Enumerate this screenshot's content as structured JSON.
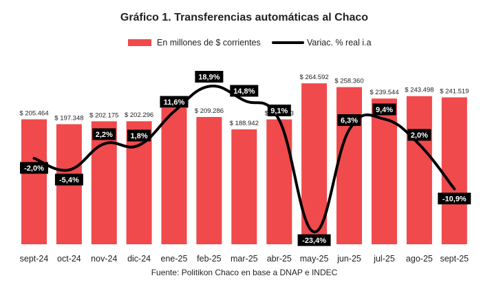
{
  "chart_data": {
    "type": "bar",
    "title": "Gráfico 1. Transferencias automáticas al Chaco",
    "categories": [
      "sept-24",
      "oct-24",
      "nov-24",
      "dic-24",
      "ene-25",
      "feb-25",
      "mar-25",
      "abr-25",
      "may-25",
      "jun-25",
      "jul-25",
      "ago-25",
      "sept-25"
    ],
    "series": [
      {
        "name": "En millones de $ corrientes",
        "kind": "bar",
        "color": "#f04a4c",
        "values": [
          205464,
          197348,
          202175,
          202296,
          224234,
          209286,
          188942,
          205313,
          264592,
          258360,
          239544,
          243498,
          241519
        ],
        "labels": [
          "$ 205.464",
          "$ 197.348",
          "$ 202.175",
          "$ 202.296",
          "$ 224.234",
          "$ 209.286",
          "$ 188.942",
          "$ 205.313",
          "$ 264.592",
          "$ 258.360",
          "$ 239.544",
          "$ 243.498",
          "$ 241.519"
        ]
      },
      {
        "name": "Variac. % real i.a",
        "kind": "line",
        "color": "#000000",
        "values": [
          -2.0,
          -5.4,
          2.2,
          1.8,
          11.6,
          18.9,
          14.8,
          9.1,
          -23.4,
          6.3,
          9.4,
          2.0,
          -10.9
        ],
        "labels": [
          "-2,0%",
          "-5,4%",
          "2,2%",
          "1,8%",
          "11,6%",
          "18,9%",
          "14,8%",
          "9,1%",
          "-23,4%",
          "6,3%",
          "9,4%",
          "2,0%",
          "-10,9%"
        ]
      }
    ],
    "legend_position": "top",
    "grid": false,
    "source": "Fuente: Politikon Chaco en base a DNAP e INDEC"
  }
}
